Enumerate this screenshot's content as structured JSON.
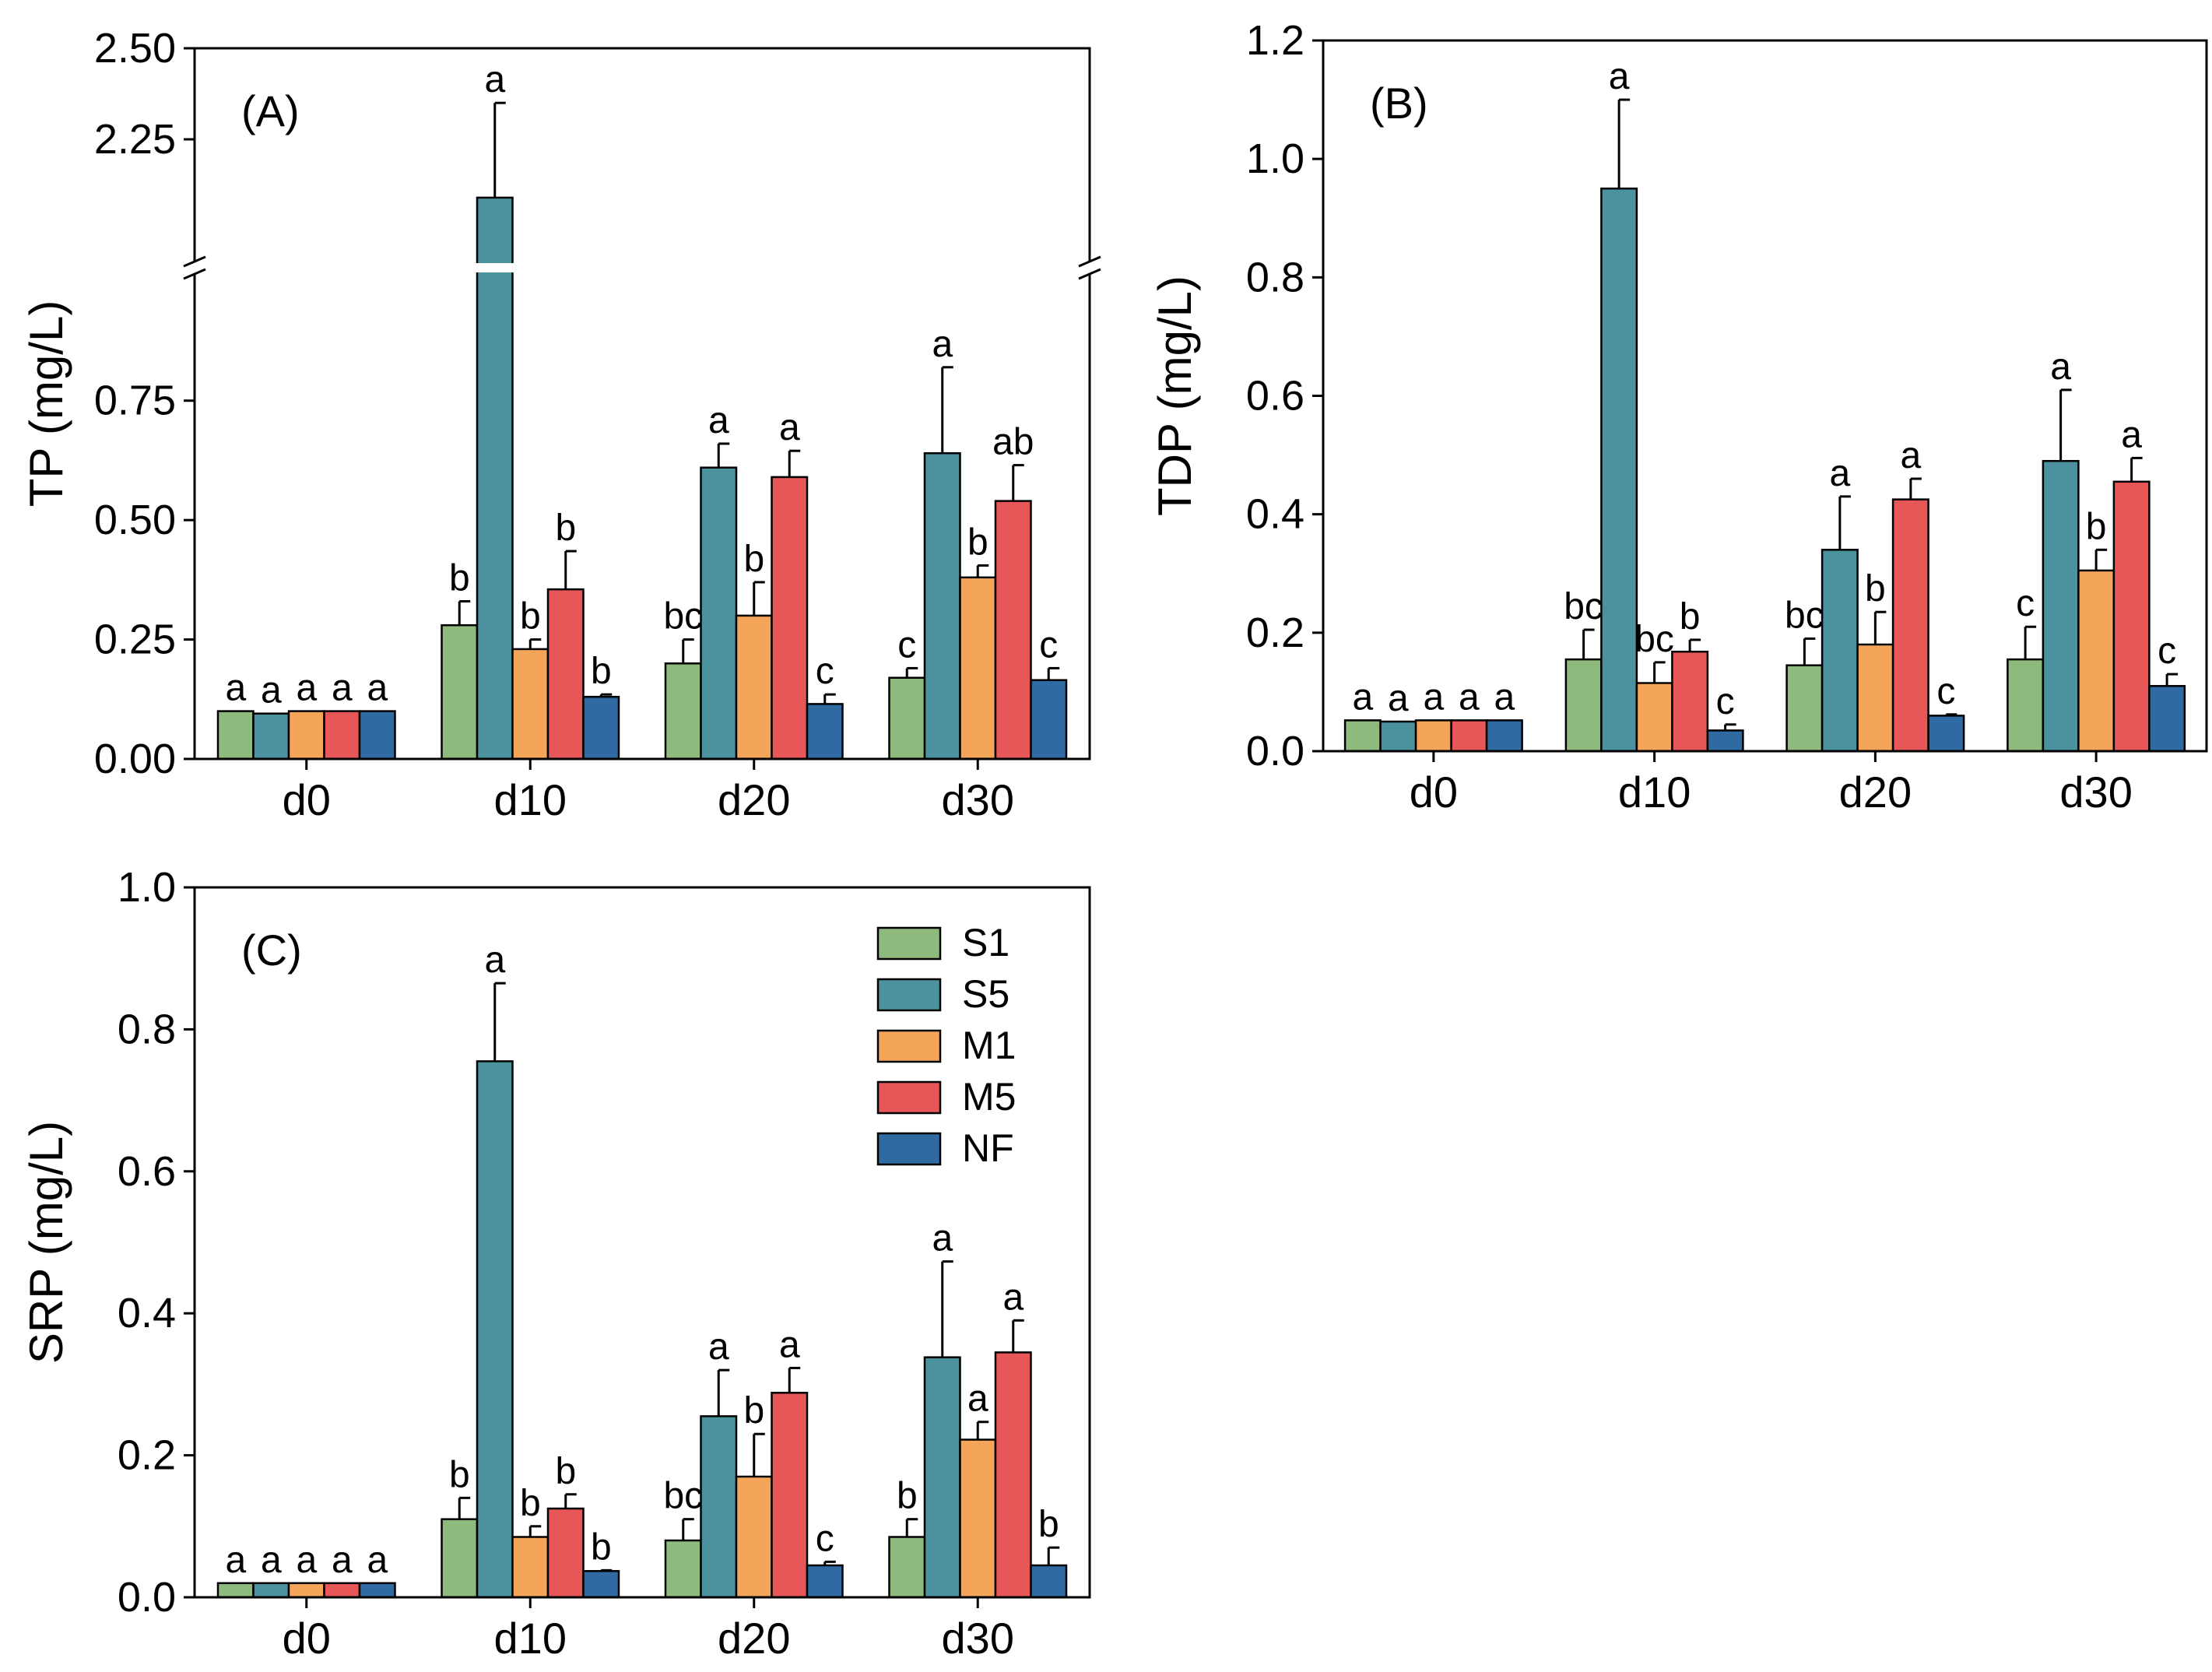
{
  "colors": {
    "S1": "#8fba7d",
    "S5": "#4c929e",
    "M1": "#f5a55a",
    "M5": "#e85757",
    "NF": "#2f6aa3"
  },
  "chart_data": [
    {
      "type": "bar",
      "panel_label": "(A)",
      "ylabel": "TP (mg/L)",
      "categories": [
        "d0",
        "d10",
        "d20",
        "d30"
      ],
      "axis_break": {
        "lower_range": [
          0,
          0.95
        ],
        "upper_range": [
          2.0,
          2.5
        ]
      },
      "yticks_lower": [
        "0.00",
        "0.25",
        "0.50",
        "0.75"
      ],
      "yticks_upper": [
        "2.25",
        "2.50"
      ],
      "series": [
        {
          "name": "S1",
          "values": [
            0.1,
            0.28,
            0.2,
            0.17
          ],
          "errors": [
            0.0,
            0.05,
            0.05,
            0.02
          ],
          "labels": [
            "a",
            "b",
            "bc",
            "c"
          ]
        },
        {
          "name": "S5",
          "values": [
            0.095,
            2.09,
            0.61,
            0.64
          ],
          "errors": [
            0.0,
            0.26,
            0.05,
            0.18
          ],
          "labels": [
            "a",
            "a",
            "a",
            "a"
          ]
        },
        {
          "name": "M1",
          "values": [
            0.1,
            0.23,
            0.3,
            0.38
          ],
          "errors": [
            0.0,
            0.02,
            0.07,
            0.025
          ],
          "labels": [
            "a",
            "b",
            "b",
            "b"
          ]
        },
        {
          "name": "M5",
          "values": [
            0.1,
            0.355,
            0.59,
            0.54
          ],
          "errors": [
            0.0,
            0.08,
            0.055,
            0.075
          ],
          "labels": [
            "a",
            "b",
            "a",
            "ab"
          ]
        },
        {
          "name": "NF",
          "values": [
            0.1,
            0.13,
            0.115,
            0.165
          ],
          "errors": [
            0.0,
            0.005,
            0.02,
            0.025
          ],
          "labels": [
            "a",
            "b",
            "c",
            "c"
          ]
        }
      ]
    },
    {
      "type": "bar",
      "panel_label": "(B)",
      "ylabel": "TDP (mg/L)",
      "categories": [
        "d0",
        "d10",
        "d20",
        "d30"
      ],
      "ylim": [
        0,
        1.2
      ],
      "yticks": [
        "0.0",
        "0.2",
        "0.4",
        "0.6",
        "0.8",
        "1.0",
        "1.2"
      ],
      "series": [
        {
          "name": "S1",
          "values": [
            0.052,
            0.155,
            0.145,
            0.155
          ],
          "errors": [
            0.0,
            0.05,
            0.045,
            0.055
          ],
          "labels": [
            "a",
            "bc",
            "bc",
            "c"
          ]
        },
        {
          "name": "S5",
          "values": [
            0.05,
            0.95,
            0.34,
            0.49
          ],
          "errors": [
            0.0,
            0.15,
            0.09,
            0.12
          ],
          "labels": [
            "a",
            "a",
            "a",
            "a"
          ]
        },
        {
          "name": "M1",
          "values": [
            0.052,
            0.115,
            0.18,
            0.305
          ],
          "errors": [
            0.0,
            0.035,
            0.055,
            0.035
          ],
          "labels": [
            "a",
            "bc",
            "b",
            "b"
          ]
        },
        {
          "name": "M5",
          "values": [
            0.052,
            0.168,
            0.425,
            0.455
          ],
          "errors": [
            0.0,
            0.02,
            0.035,
            0.04
          ],
          "labels": [
            "a",
            "b",
            "a",
            "a"
          ]
        },
        {
          "name": "NF",
          "values": [
            0.052,
            0.035,
            0.06,
            0.11
          ],
          "errors": [
            0.0,
            0.01,
            0.002,
            0.02
          ],
          "labels": [
            "a",
            "c",
            "c",
            "c"
          ]
        }
      ]
    },
    {
      "type": "bar",
      "panel_label": "(C)",
      "ylabel": "SRP (mg/L)",
      "categories": [
        "d0",
        "d10",
        "d20",
        "d30"
      ],
      "ylim": [
        0,
        1.0
      ],
      "yticks": [
        "0.0",
        "0.2",
        "0.4",
        "0.6",
        "0.8",
        "1.0"
      ],
      "legend_position": "top-right",
      "series": [
        {
          "name": "S1",
          "values": [
            0.02,
            0.11,
            0.08,
            0.085
          ],
          "errors": [
            0.0,
            0.03,
            0.03,
            0.025
          ],
          "labels": [
            "a",
            "b",
            "bc",
            "b"
          ]
        },
        {
          "name": "S5",
          "values": [
            0.02,
            0.755,
            0.255,
            0.338
          ],
          "errors": [
            0.0,
            0.11,
            0.065,
            0.135
          ],
          "labels": [
            "a",
            "a",
            "a",
            "a"
          ]
        },
        {
          "name": "M1",
          "values": [
            0.02,
            0.085,
            0.17,
            0.222
          ],
          "errors": [
            0.0,
            0.015,
            0.06,
            0.025
          ],
          "labels": [
            "a",
            "b",
            "b",
            "a"
          ]
        },
        {
          "name": "M5",
          "values": [
            0.02,
            0.125,
            0.288,
            0.345
          ],
          "errors": [
            0.0,
            0.02,
            0.035,
            0.045
          ],
          "labels": [
            "a",
            "b",
            "a",
            "a"
          ]
        },
        {
          "name": "NF",
          "values": [
            0.02,
            0.037,
            0.045,
            0.045
          ],
          "errors": [
            0.0,
            0.001,
            0.005,
            0.025
          ],
          "labels": [
            "a",
            "b",
            "c",
            "b"
          ]
        }
      ]
    }
  ]
}
